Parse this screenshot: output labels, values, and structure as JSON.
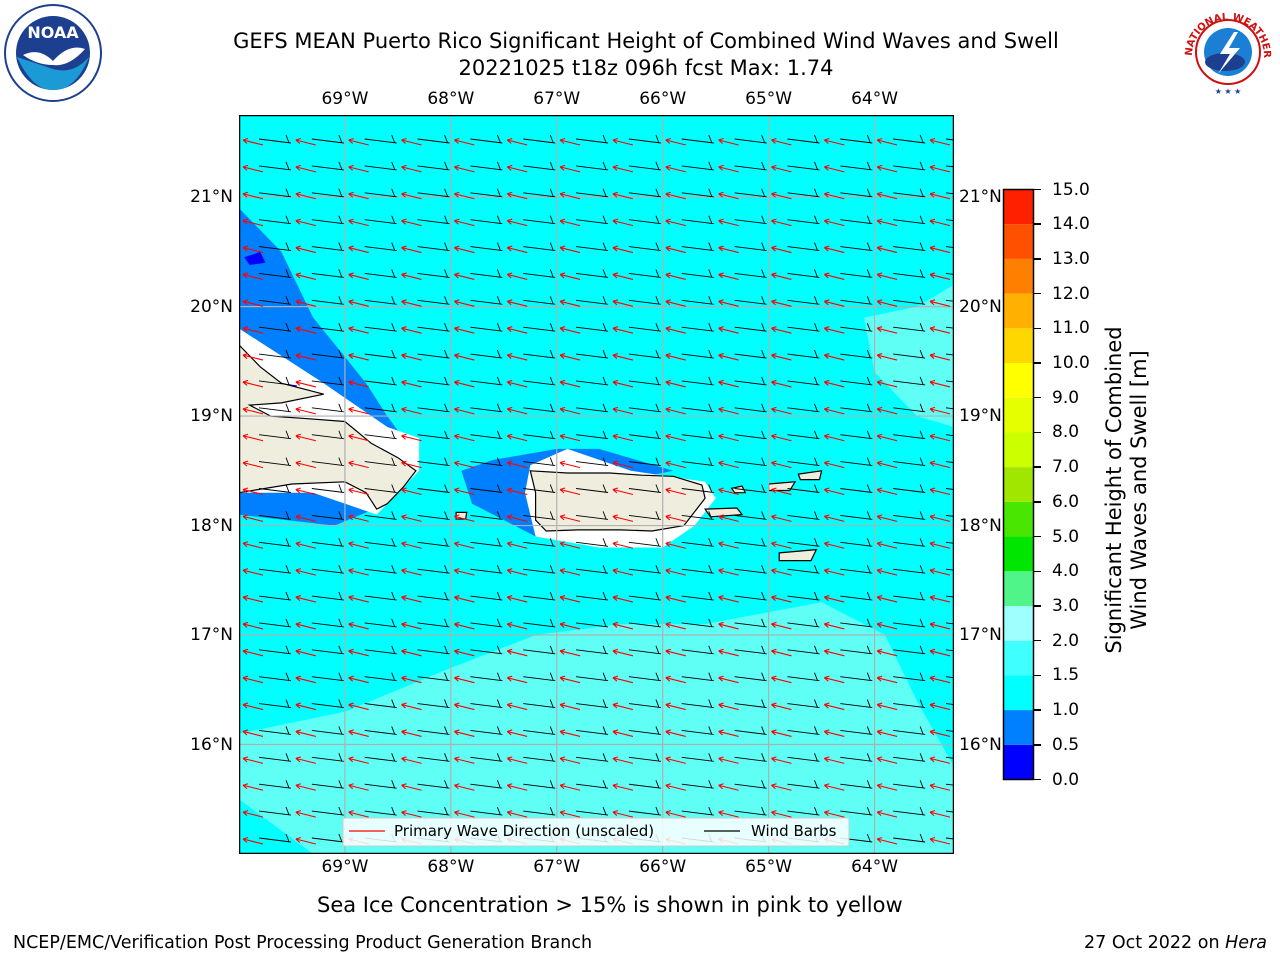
{
  "title": {
    "line1": "GEFS MEAN Puerto Rico Significant Height of Combined Wind Waves and Swell",
    "line2": "20221025 t18z 096h fcst   Max: 1.74"
  },
  "map": {
    "lon_range": [
      -70.0,
      -63.25
    ],
    "lat_range": [
      15.0,
      21.75
    ],
    "lon_ticks": [
      {
        "value": -69,
        "label": "69°W"
      },
      {
        "value": -68,
        "label": "68°W"
      },
      {
        "value": -67,
        "label": "67°W"
      },
      {
        "value": -66,
        "label": "66°W"
      },
      {
        "value": -65,
        "label": "65°W"
      },
      {
        "value": -64,
        "label": "64°W"
      }
    ],
    "lat_ticks": [
      {
        "value": 21,
        "label": "21°N"
      },
      {
        "value": 20,
        "label": "20°N"
      },
      {
        "value": 19,
        "label": "19°N"
      },
      {
        "value": 18,
        "label": "18°N"
      },
      {
        "value": 17,
        "label": "17°N"
      },
      {
        "value": 16,
        "label": "16°N"
      }
    ],
    "land_color": "#efedde",
    "sea_color": "#00ffff"
  },
  "legend": {
    "wave_direction": "Primary Wave Direction (unscaled)",
    "wind_barbs": "Wind Barbs",
    "wave_color": "#ff0000",
    "barb_color": "#000000"
  },
  "colorbar": {
    "label_line1": "Significant Height of Combined",
    "label_line2": "Wind Waves and Swell [m]",
    "levels": [
      "0.0",
      "0.5",
      "1.0",
      "1.5",
      "2.0",
      "3.0",
      "4.0",
      "5.0",
      "6.0",
      "7.0",
      "8.0",
      "9.0",
      "10.0",
      "11.0",
      "12.0",
      "13.0",
      "14.0",
      "15.0"
    ],
    "colors": [
      "#0000ff",
      "#0080ff",
      "#00ffff",
      "#40ffff",
      "#9fffff",
      "#50f58a",
      "#00e600",
      "#48e600",
      "#a0e600",
      "#ccff00",
      "#e6ff00",
      "#ffff00",
      "#ffd700",
      "#ffb000",
      "#ff8000",
      "#ff5000",
      "#ff2000"
    ]
  },
  "note": "Sea Ice Concentration > 15% is shown in pink to yellow",
  "footer": {
    "left": "NCEP/EMC/Verification Post Processing Product Generation Branch",
    "date": "27 Oct 2022 on",
    "machine": "Hera"
  },
  "logos": {
    "noaa_text": "NOAA",
    "nws_text": "NATIONAL WEATHER SERVICE"
  }
}
